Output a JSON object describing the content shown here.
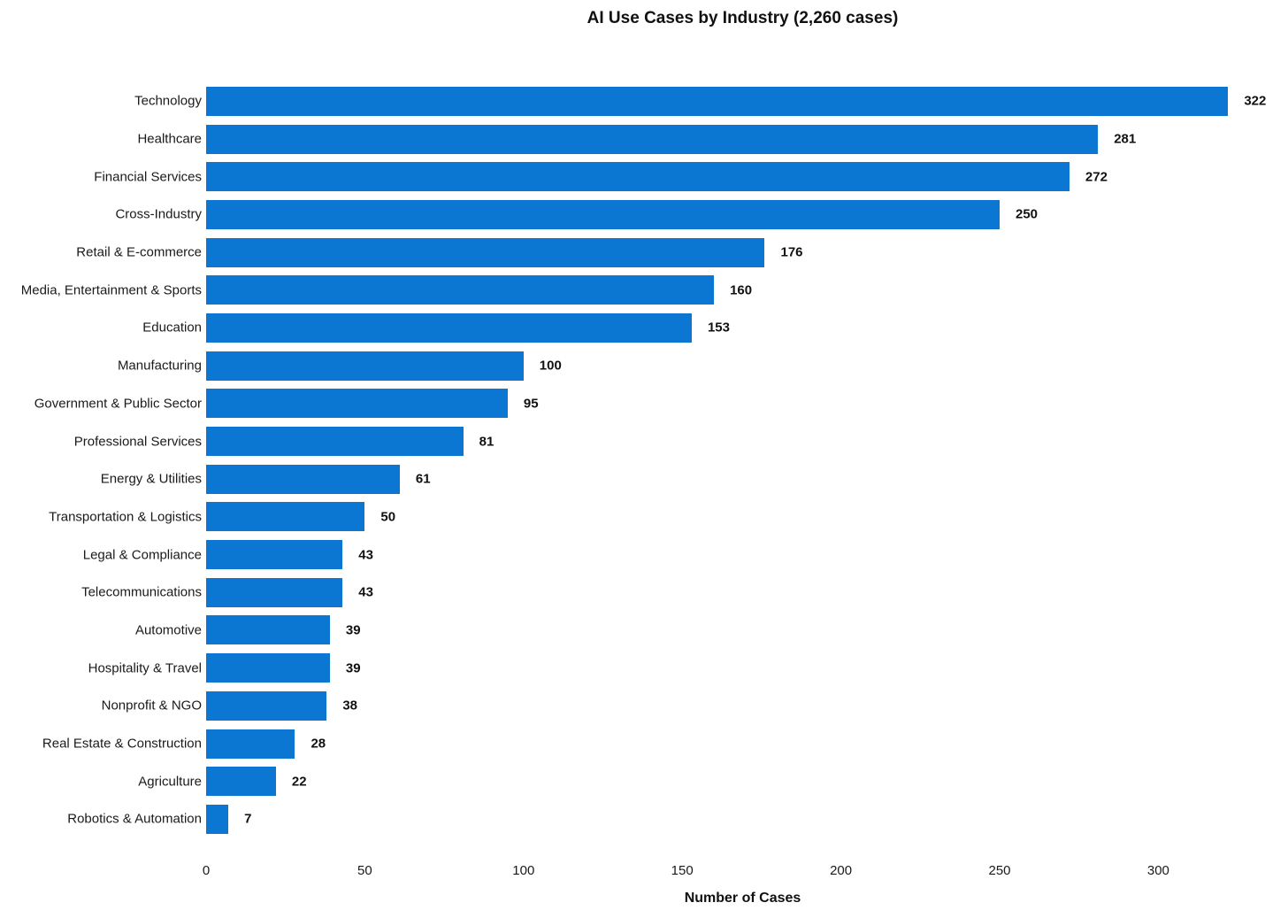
{
  "title": "AI Use Cases by Industry (2,260 cases)",
  "colors": {
    "bar": "#0b77d2",
    "text": "#1a1a1a",
    "background": "#ffffff"
  },
  "chart_data": {
    "type": "bar",
    "orientation": "horizontal",
    "title": "AI Use Cases by Industry (2,260 cases)",
    "categories": [
      "Technology",
      "Healthcare",
      "Financial Services",
      "Cross-Industry",
      "Retail & E-commerce",
      "Media, Entertainment & Sports",
      "Education",
      "Manufacturing",
      "Government & Public Sector",
      "Professional Services",
      "Energy & Utilities",
      "Transportation & Logistics",
      "Legal & Compliance",
      "Telecommunications",
      "Automotive",
      "Hospitality & Travel",
      "Nonprofit & NGO",
      "Real Estate & Construction",
      "Agriculture",
      "Robotics & Automation"
    ],
    "values": [
      322,
      281,
      272,
      250,
      176,
      160,
      153,
      100,
      95,
      81,
      61,
      50,
      43,
      43,
      39,
      39,
      38,
      28,
      22,
      7
    ],
    "total_cases": 2260,
    "xlabel": "Number of Cases",
    "ylabel": "",
    "xlim": [
      0,
      338
    ],
    "xticks": [
      0,
      50,
      100,
      150,
      200,
      250,
      300
    ],
    "grid": false,
    "legend": "none",
    "value_labels": true
  }
}
